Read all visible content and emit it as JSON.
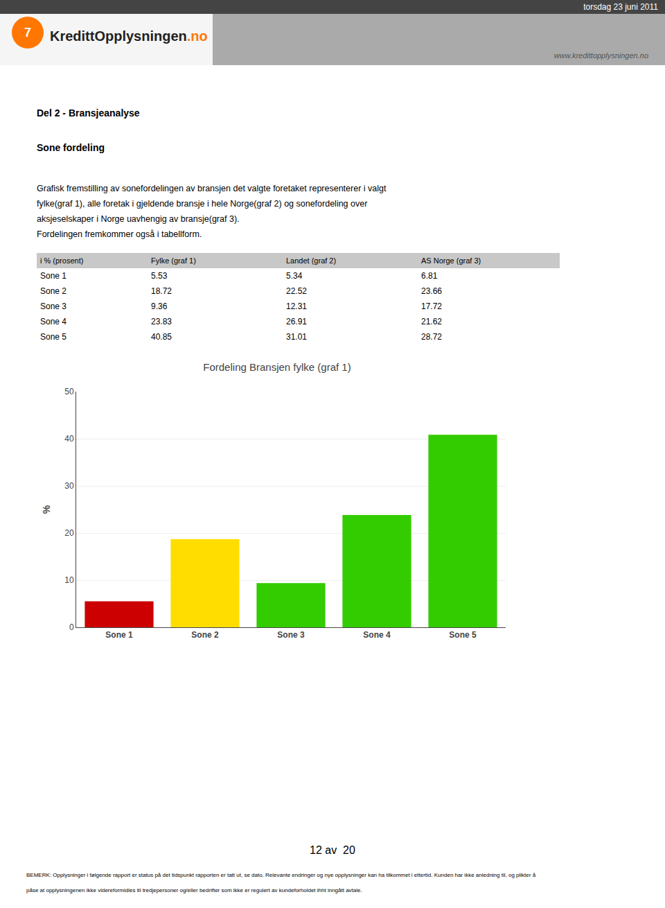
{
  "chart_data": {
    "type": "bar",
    "title": "Fordeling Bransjen fylke (graf 1)",
    "categories": [
      "Sone 1",
      "Sone 2",
      "Sone 3",
      "Sone 4",
      "Sone 5"
    ],
    "values": [
      5.53,
      18.72,
      9.36,
      23.83,
      40.85
    ],
    "colors": [
      "#cc0000",
      "#ffdd00",
      "#33cc00",
      "#33cc00",
      "#33cc00"
    ],
    "ylabel": "%",
    "ylim": [
      0,
      50
    ],
    "yticks": [
      0,
      10,
      20,
      30,
      40,
      50
    ],
    "grid": true
  },
  "page": {
    "header_date": "torsdag 23 juni 2011",
    "logo_mark": "7",
    "logo_text": [
      "Kreditt",
      "Opplysningen",
      ".no"
    ],
    "website": "www.kredittopplysningen.no",
    "section_title": "Del 2 - Bransjeanalyse",
    "subsection_title": "Sone fordeling",
    "body_lines": [
      "Grafisk fremstilling av sonefordelingen av bransjen det valgte foretaket representerer i valgt",
      "fylke(graf 1), alle foretak i gjeldende bransje i hele Norge(graf 2) og sonefordeling over",
      "aksjeselskaper i Norge uavhengig av bransje(graf 3).",
      "Fordelingen fremkommer også i tabellform."
    ],
    "table_headers": [
      "i % (prosent)",
      "Fylke (graf 1)",
      "Landet (graf 2)",
      "AS Norge (graf 3)"
    ],
    "table_rows": [
      [
        "Sone 1",
        "5.53",
        "5.34",
        "6.81"
      ],
      [
        "Sone 2",
        "18.72",
        "22.52",
        "23.66"
      ],
      [
        "Sone 3",
        "9.36",
        "12.31",
        "17.72"
      ],
      [
        "Sone 4",
        "23.83",
        "26.91",
        "21.62"
      ],
      [
        "Sone 5",
        "40.85",
        "31.01",
        "28.72"
      ]
    ],
    "page_number": "12 av  20",
    "footer_lines": [
      "BEMERK: Opplysninger i følgende rapport er status på det tidspunkt rapporten er tatt ut, se dato. Relevante endringer og nye opplysninger kan ha tilkommet i ettertid. Kunden har ikke anledning til, og plikter å",
      "påse at opplysningenen ikke videreformidles til tredjepersoner og/eller bedrifter som ikke er regulert av kundeforholdet ihht inngått avtale."
    ]
  }
}
